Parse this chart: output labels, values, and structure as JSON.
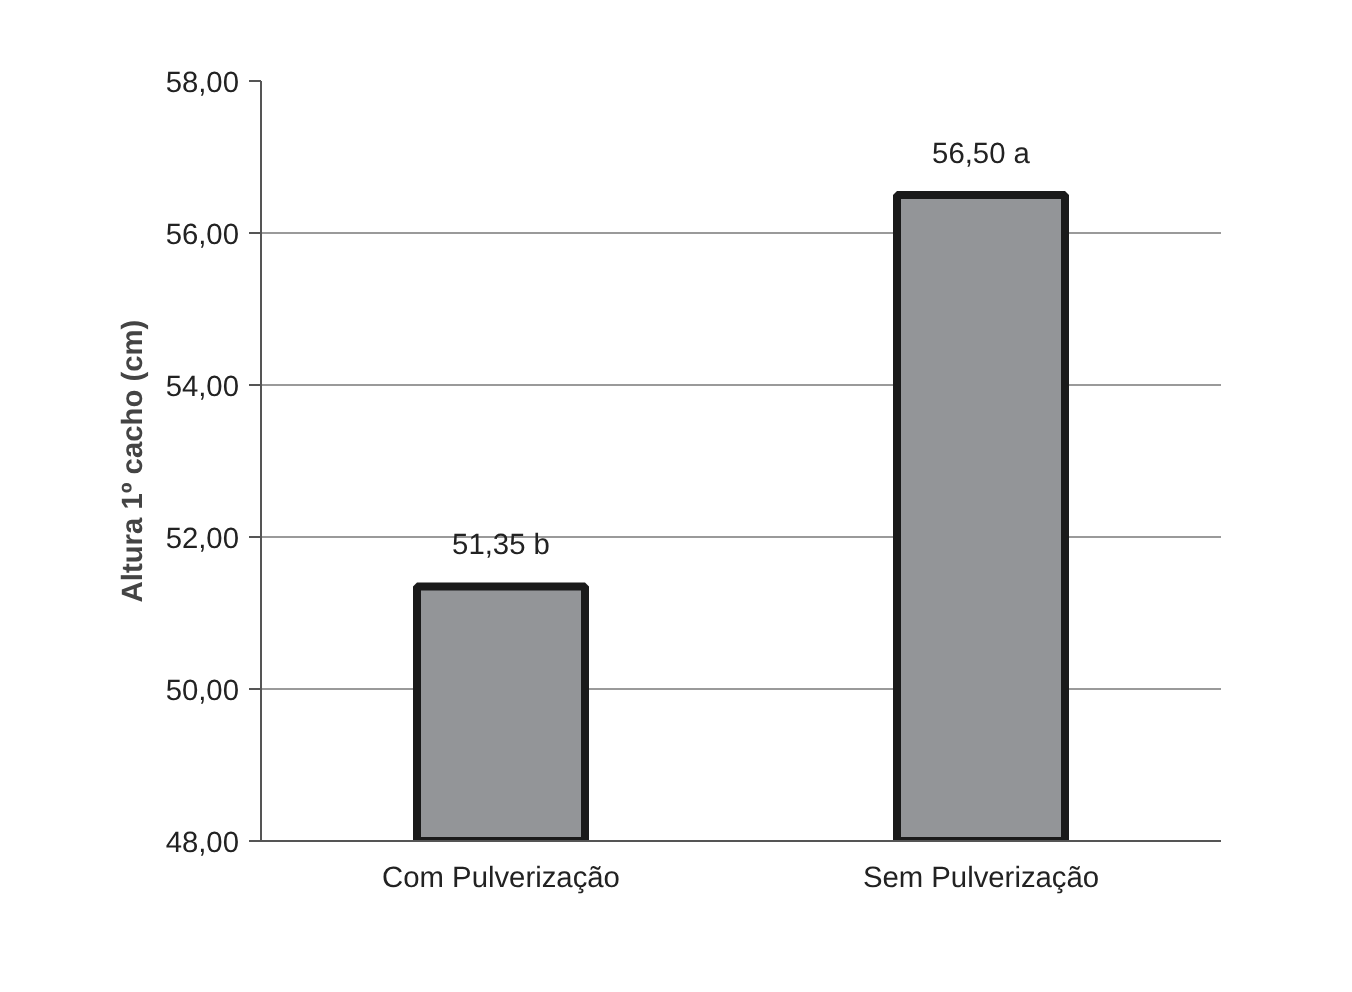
{
  "chart_data": {
    "type": "bar",
    "ylabel": "Altura 1º cacho (cm)",
    "categories": [
      "Com Pulverização",
      "Sem Pulverização"
    ],
    "values": [
      51.35,
      56.5
    ],
    "value_labels": [
      "51,35 b",
      "56,50 a"
    ],
    "color": "#939598",
    "ylim": [
      48,
      58
    ],
    "yticks": [
      {
        "value": 48,
        "label": "48,00"
      },
      {
        "value": 50,
        "label": "50,00"
      },
      {
        "value": 52,
        "label": "52,00"
      },
      {
        "value": 54,
        "label": "54,00"
      },
      {
        "value": 56,
        "label": "56,00"
      },
      {
        "value": 58,
        "label": "58,00"
      }
    ],
    "grid": "y"
  }
}
